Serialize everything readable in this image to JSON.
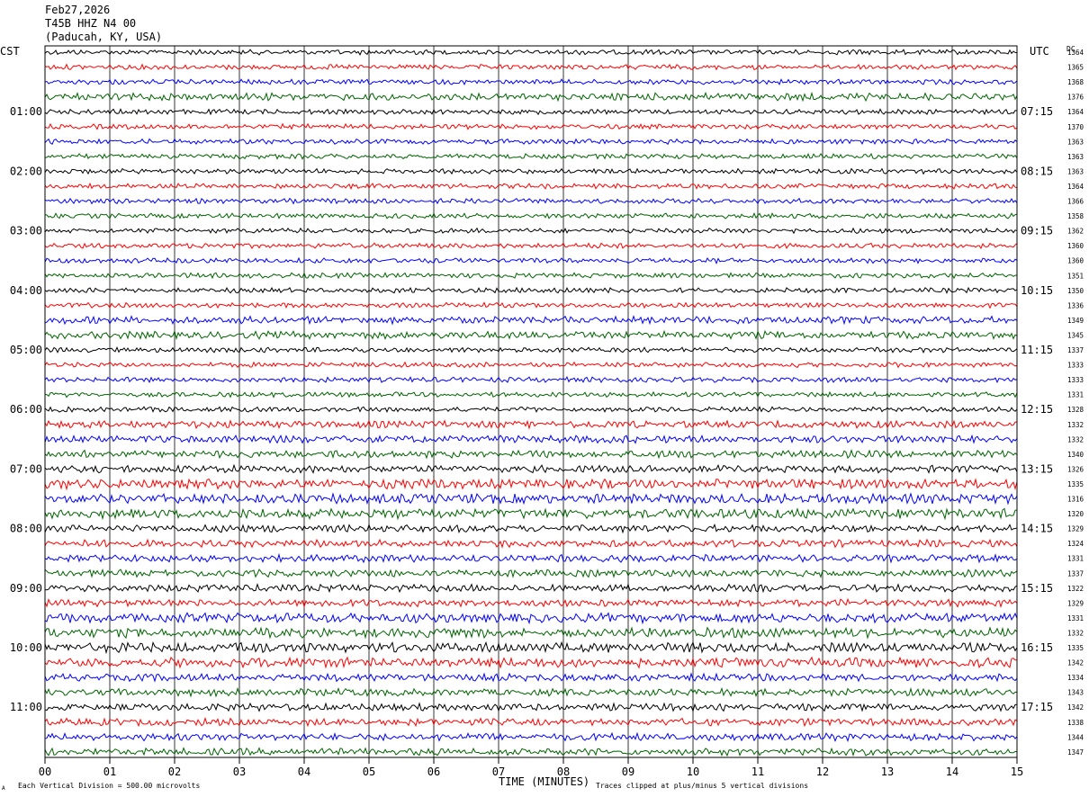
{
  "header": {
    "date": "Feb27,2026",
    "station": "T45B HHZ N4 00",
    "location": "(Paducah, KY, USA)"
  },
  "left_axis_label": "CST",
  "right_axis_label": "UTC",
  "dc_label": "DC",
  "footer": {
    "scale_note": "Each Vertical Division =  500.00 microvolts",
    "clip_note": "Traces clipped at plus/minus 5 vertical divisions",
    "corner_mark": "A"
  },
  "chart_data": {
    "type": "line",
    "xlabel": "TIME (MINUTES)",
    "ylabel": "",
    "title": "",
    "xlim": [
      0,
      15
    ],
    "x_ticks": [
      "00",
      "01",
      "02",
      "03",
      "04",
      "05",
      "06",
      "07",
      "08",
      "09",
      "10",
      "11",
      "12",
      "13",
      "14",
      "15"
    ],
    "grid": "vertical lines at each minute",
    "trace_colors": [
      "#000000",
      "#ff0000",
      "#0000ff",
      "#006400"
    ],
    "left_time_labels": [
      "01:00",
      "02:00",
      "03:00",
      "04:00",
      "05:00",
      "06:00",
      "07:00",
      "08:00",
      "09:00",
      "10:00",
      "11:00"
    ],
    "right_time_labels": [
      "07:15",
      "08:15",
      "09:15",
      "10:15",
      "11:15",
      "12:15",
      "13:15",
      "14:15",
      "15:15",
      "16:15",
      "17:15"
    ],
    "dc_offsets": [
      1364,
      1365,
      1368,
      1376,
      1364,
      1370,
      1363,
      1363,
      1363,
      1364,
      1366,
      1358,
      1362,
      1360,
      1360,
      1351,
      1350,
      1336,
      1349,
      1345,
      1337,
      1333,
      1333,
      1331,
      1328,
      1332,
      1332,
      1340,
      1326,
      1335,
      1316,
      1320,
      1329,
      1324,
      1331,
      1337,
      1322,
      1329,
      1331,
      1332,
      1335,
      1342,
      1334,
      1343,
      1342,
      1338,
      1344,
      1347
    ],
    "trace_amplitude_level": [
      1,
      1,
      1,
      2,
      1,
      1,
      1,
      1,
      1,
      1,
      1,
      1,
      1,
      1,
      1,
      1,
      1,
      1,
      2,
      2,
      1,
      1,
      1,
      1,
      1,
      2,
      2,
      2,
      2,
      3,
      3,
      3,
      2,
      2,
      2,
      2,
      2,
      2,
      3,
      3,
      3,
      3,
      2,
      2,
      2,
      2,
      2,
      2
    ],
    "trace_count": 48
  }
}
